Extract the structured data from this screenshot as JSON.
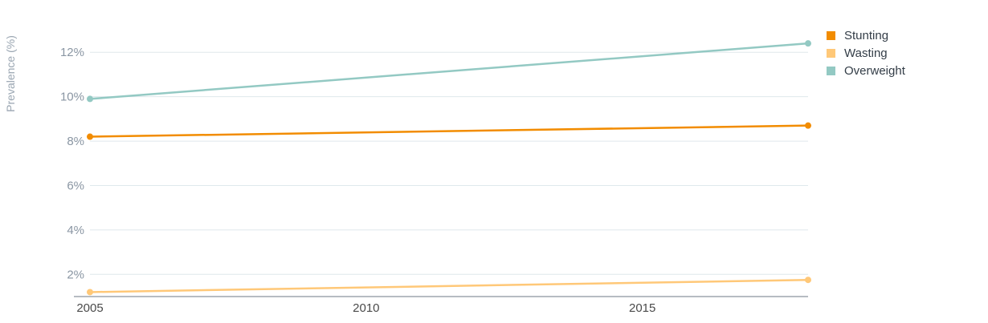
{
  "chart_data": {
    "type": "line",
    "ylabel": "Prevalence (%)",
    "xlabel": "",
    "x": [
      2005,
      2018
    ],
    "xlim": [
      2005,
      2018
    ],
    "ylim": [
      1.0,
      13.2
    ],
    "x_ticks": [
      2005,
      2010,
      2015
    ],
    "x_tick_labels": [
      "2005",
      "2010",
      "2015"
    ],
    "y_ticks": [
      2,
      4,
      6,
      8,
      10,
      12
    ],
    "y_tick_labels": [
      "2%",
      "4%",
      "6%",
      "8%",
      "10%",
      "12%"
    ],
    "grid": true,
    "legend_position": "top-right",
    "series": [
      {
        "name": "Stunting",
        "color": "#f28c00",
        "values": [
          8.2,
          8.7
        ]
      },
      {
        "name": "Wasting",
        "color": "#ffc878",
        "values": [
          1.2,
          1.75
        ]
      },
      {
        "name": "Overweight",
        "color": "#93c9c3",
        "values": [
          9.9,
          12.4
        ]
      }
    ]
  }
}
